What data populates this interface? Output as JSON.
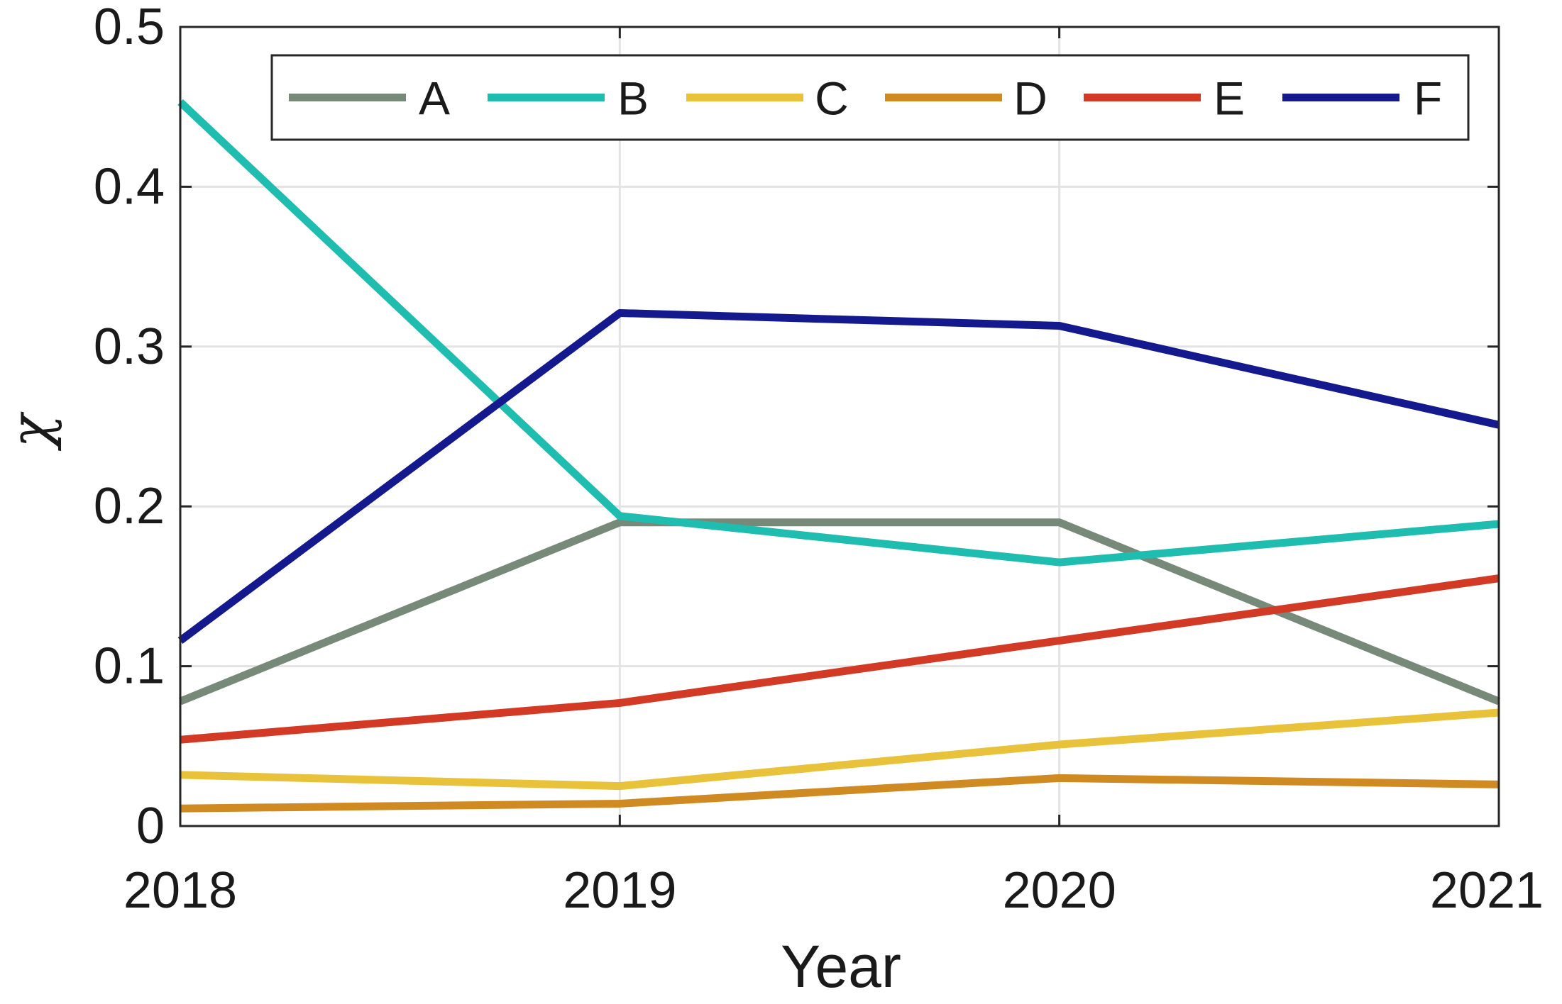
{
  "chart_data": {
    "type": "line",
    "title": "",
    "xlabel": "Year",
    "ylabel": "χ",
    "x": [
      2018,
      2019,
      2020,
      2021
    ],
    "xtick_labels": [
      "2018",
      "2019",
      "2020",
      "2021"
    ],
    "ytick_labels": [
      "0",
      "0.1",
      "0.2",
      "0.3",
      "0.4",
      "0.5"
    ],
    "yticks": [
      0,
      0.1,
      0.2,
      0.3,
      0.4,
      0.5
    ],
    "xlim": [
      2018,
      2021
    ],
    "ylim": [
      0,
      0.5
    ],
    "grid": true,
    "legend_position": "top",
    "series": [
      {
        "name": "A",
        "color": "#778a7a",
        "values": [
          0.078,
          0.19,
          0.19,
          0.078
        ]
      },
      {
        "name": "B",
        "color": "#1fbcb0",
        "values": [
          0.453,
          0.194,
          0.165,
          0.189
        ]
      },
      {
        "name": "C",
        "color": "#e8c23a",
        "values": [
          0.032,
          0.025,
          0.051,
          0.071
        ]
      },
      {
        "name": "D",
        "color": "#d08a22",
        "values": [
          0.011,
          0.014,
          0.03,
          0.026
        ]
      },
      {
        "name": "E",
        "color": "#d33a26",
        "values": [
          0.054,
          0.077,
          0.116,
          0.155
        ]
      },
      {
        "name": "F",
        "color": "#141a8e",
        "values": [
          0.116,
          0.321,
          0.313,
          0.251
        ]
      }
    ]
  }
}
